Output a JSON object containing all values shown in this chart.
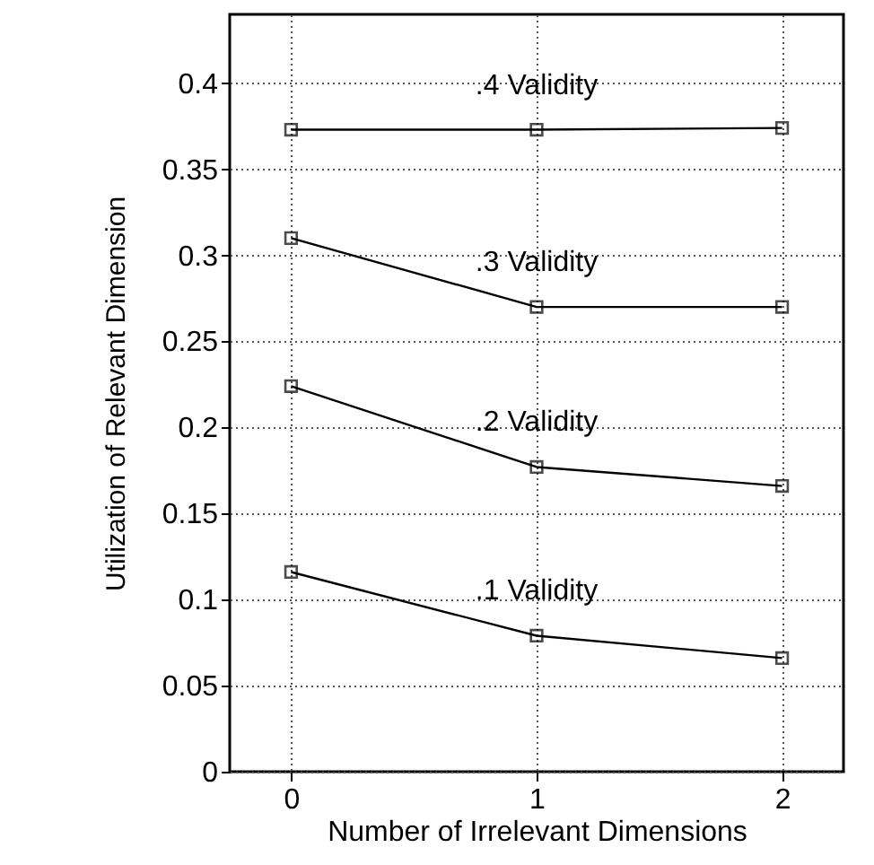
{
  "chart_data": {
    "type": "line",
    "xlabel": "Number of Irrelevant Dimensions",
    "ylabel": "Utilization of Relevant Dimension",
    "x": [
      0,
      1,
      2
    ],
    "series": [
      {
        "name": ".4 Validity",
        "color": "#000000",
        "values": [
          0.373,
          0.373,
          0.374
        ]
      },
      {
        "name": ".3 Validity",
        "color": "#000000",
        "values": [
          0.31,
          0.27,
          0.27
        ]
      },
      {
        "name": ".2 Validity",
        "color": "#000000",
        "values": [
          0.224,
          0.177,
          0.166
        ]
      },
      {
        "name": ".1 Validity",
        "color": "#000000",
        "values": [
          0.116,
          0.079,
          0.066
        ]
      }
    ],
    "xlim": [
      -0.25,
      2.25
    ],
    "xticks": [
      0,
      1,
      2
    ],
    "ylim": [
      0,
      0.44
    ],
    "yticks": [
      0,
      0.05,
      0.1,
      0.15,
      0.2,
      0.25,
      0.3,
      0.35,
      0.4
    ],
    "grid": true,
    "marker": "square",
    "line_style": "solid"
  }
}
